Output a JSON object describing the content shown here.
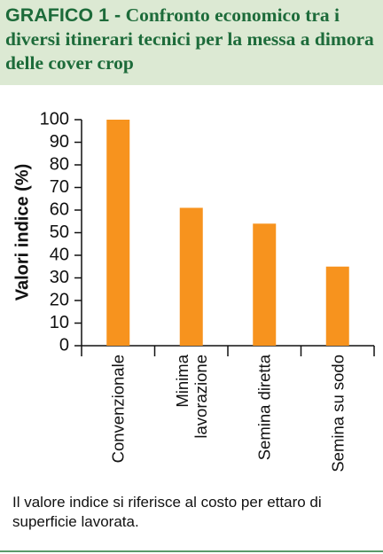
{
  "header": {
    "label": "GRAFICO 1 -",
    "title": "Confronto economico tra i diversi itinerari tecnici per la messa a dimora delle cover crop"
  },
  "chart_data": {
    "type": "bar",
    "y_label": "Valori indice (%)",
    "categories": [
      "Convenzionale",
      "Minima lavorazione",
      "Semina diretta",
      "Semina su sodo"
    ],
    "values": [
      100,
      61,
      54,
      35
    ],
    "color": "#f7931e",
    "ylim": [
      0,
      100
    ],
    "yticks": [
      0,
      10,
      20,
      30,
      40,
      50,
      60,
      70,
      80,
      90,
      100
    ],
    "grid": false
  },
  "note": "Il valore indice si riferisce al costo per ettaro di superficie lavorata."
}
